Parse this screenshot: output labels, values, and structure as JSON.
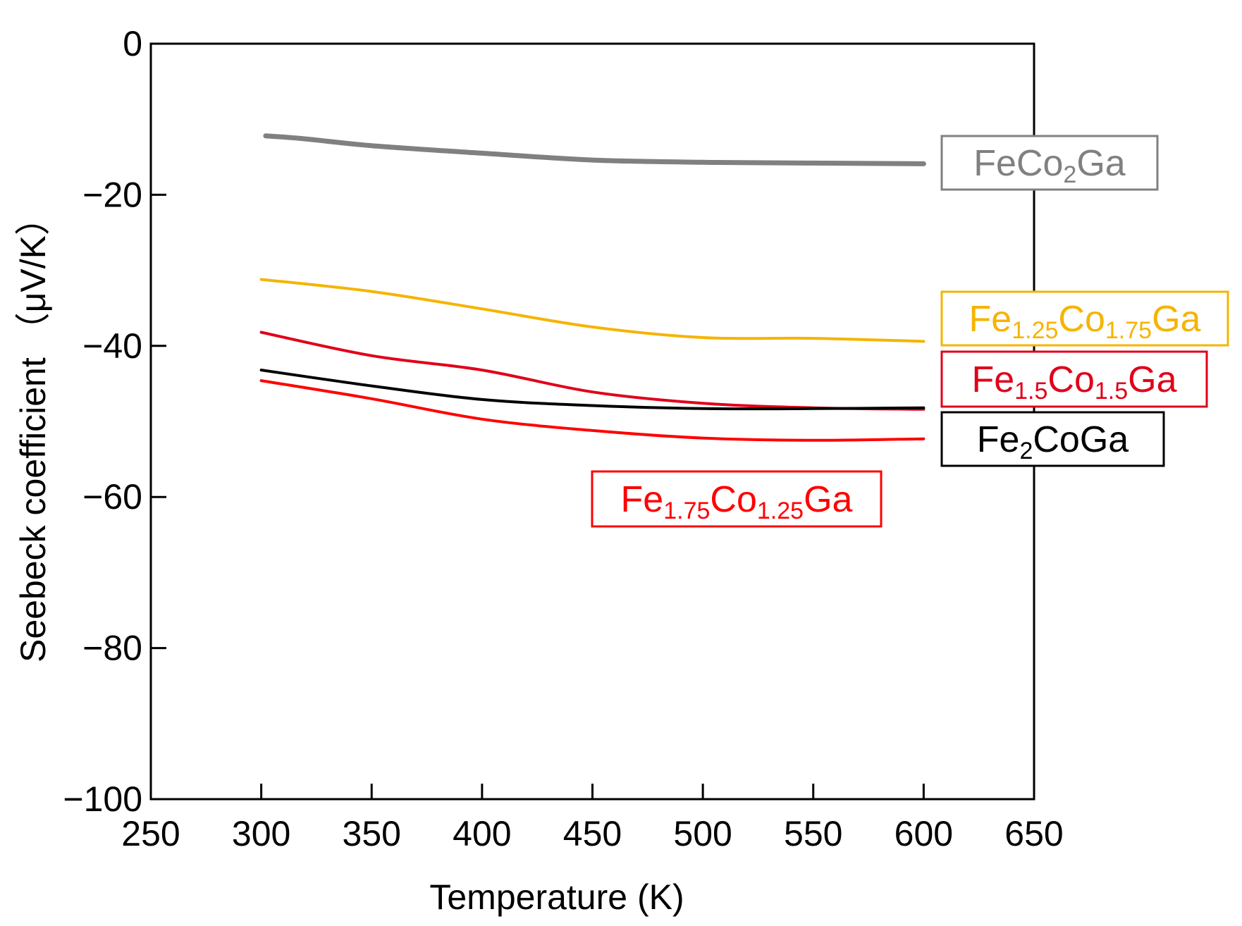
{
  "colors": {
    "axis": "#000000",
    "FeCo2Ga": "#808080",
    "Fe1.25Co1.75Ga": "#f5b400",
    "Fe1.5Co1.5Ga": "#e0001a",
    "Fe2CoGa": "#000000",
    "Fe1.75Co1.25Ga": "#ff0000"
  },
  "chart_data": {
    "type": "line",
    "title": "",
    "xlabel": "Temperature (K)",
    "ylabel": "Seebeck coefficient （μV/K）",
    "xlim": [
      250,
      650
    ],
    "ylim": [
      -100,
      0
    ],
    "xticks": [
      250,
      300,
      350,
      400,
      450,
      500,
      550,
      600,
      650
    ],
    "yticks": [
      0,
      -20,
      -40,
      -60,
      -80,
      -100
    ],
    "xtick_labels": [
      "250",
      "300",
      "350",
      "400",
      "450",
      "500",
      "550",
      "600",
      "650"
    ],
    "ytick_labels": [
      "0",
      "−20",
      "−40",
      "−60",
      "−80",
      "−100"
    ],
    "grid": false,
    "series": [
      {
        "name": "FeCo2Ga",
        "label": {
          "base": "FeCo",
          "sub1": "2",
          "mid": "Ga",
          "sub2": "",
          "end": ""
        },
        "color_key": "FeCo2Ga",
        "stroke": "thick",
        "x": [
          302,
          320,
          350,
          400,
          450,
          500,
          550,
          600
        ],
        "y": [
          -12.2,
          -12.6,
          -13.5,
          -14.5,
          -15.4,
          -15.7,
          -15.8,
          -15.9
        ]
      },
      {
        "name": "Fe1.25Co1.75Ga",
        "label": {
          "base": "Fe",
          "sub1": "1.25",
          "mid": "Co",
          "sub2": "1.75",
          "end": "Ga"
        },
        "color_key": "Fe1.25Co1.75Ga",
        "stroke": "normal",
        "x": [
          300,
          350,
          400,
          450,
          500,
          550,
          600
        ],
        "y": [
          -31.2,
          -32.8,
          -35.1,
          -37.5,
          -38.9,
          -39.0,
          -39.4
        ]
      },
      {
        "name": "Fe1.5Co1.5Ga",
        "label": {
          "base": "Fe",
          "sub1": "1.5",
          "mid": "Co",
          "sub2": "1.5",
          "end": "Ga"
        },
        "color_key": "Fe1.5Co1.5Ga",
        "stroke": "normal",
        "x": [
          300,
          350,
          400,
          450,
          500,
          550,
          600
        ],
        "y": [
          -38.2,
          -41.3,
          -43.2,
          -46.1,
          -47.6,
          -48.2,
          -48.4
        ]
      },
      {
        "name": "Fe2CoGa",
        "label": {
          "base": "Fe",
          "sub1": "2",
          "mid": "CoGa",
          "sub2": "",
          "end": ""
        },
        "color_key": "Fe2CoGa",
        "stroke": "normal",
        "x": [
          300,
          350,
          400,
          450,
          500,
          550,
          600
        ],
        "y": [
          -43.2,
          -45.3,
          -47.1,
          -47.9,
          -48.3,
          -48.3,
          -48.2
        ]
      },
      {
        "name": "Fe1.75Co1.25Ga",
        "label": {
          "base": "Fe",
          "sub1": "1.75",
          "mid": "Co",
          "sub2": "1.25",
          "end": "Ga"
        },
        "color_key": "Fe1.75Co1.25Ga",
        "stroke": "normal",
        "x": [
          300,
          350,
          400,
          450,
          500,
          550,
          600
        ],
        "y": [
          -44.6,
          -47.0,
          -49.7,
          -51.2,
          -52.2,
          -52.5,
          -52.3
        ]
      }
    ]
  }
}
